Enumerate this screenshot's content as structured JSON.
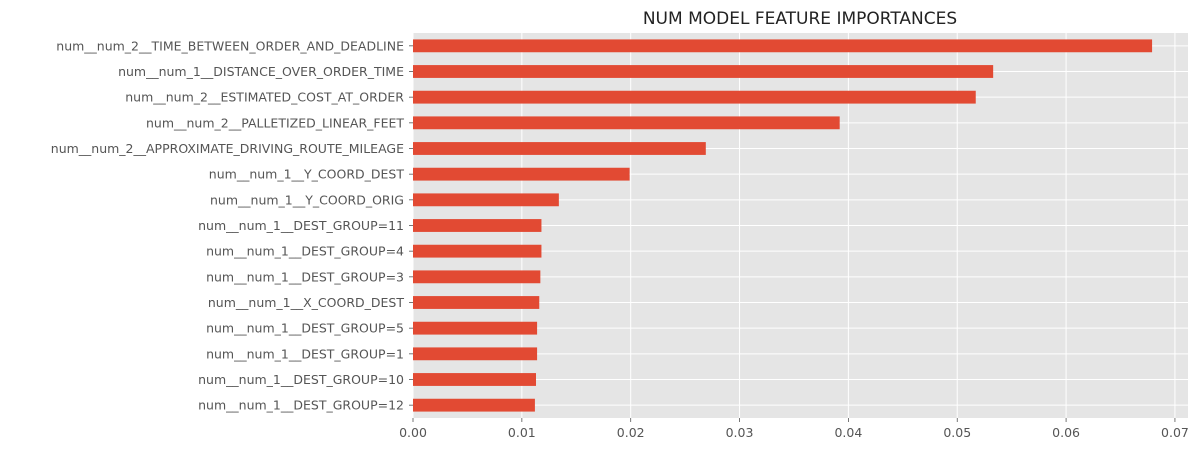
{
  "chart_data": {
    "type": "bar",
    "orientation": "horizontal",
    "title": "NUM MODEL FEATURE IMPORTANCES",
    "xlabel": "",
    "ylabel": "",
    "xlim": [
      0,
      0.0712
    ],
    "xticks": [
      "0.00",
      "0.01",
      "0.02",
      "0.03",
      "0.04",
      "0.05",
      "0.06",
      "0.07"
    ],
    "grid": true,
    "bar_color": "#E24A33",
    "background_color": "#E5E5E5",
    "categories": [
      "num__num_2__TIME_BETWEEN_ORDER_AND_DEADLINE",
      "num__num_1__DISTANCE_OVER_ORDER_TIME",
      "num__num_2__ESTIMATED_COST_AT_ORDER",
      "num__num_2__PALLETIZED_LINEAR_FEET",
      "num__num_2__APPROXIMATE_DRIVING_ROUTE_MILEAGE",
      "num__num_1__Y_COORD_DEST",
      "num__num_1__Y_COORD_ORIG",
      "num__num_1__DEST_GROUP=11",
      "num__num_1__DEST_GROUP=4",
      "num__num_1__DEST_GROUP=3",
      "num__num_1__X_COORD_DEST",
      "num__num_1__DEST_GROUP=5",
      "num__num_1__DEST_GROUP=1",
      "num__num_1__DEST_GROUP=10",
      "num__num_1__DEST_GROUP=12"
    ],
    "values": [
      0.0679,
      0.0533,
      0.0517,
      0.0392,
      0.0269,
      0.0199,
      0.0134,
      0.0118,
      0.0118,
      0.0117,
      0.0116,
      0.0114,
      0.0114,
      0.0113,
      0.0112
    ]
  }
}
